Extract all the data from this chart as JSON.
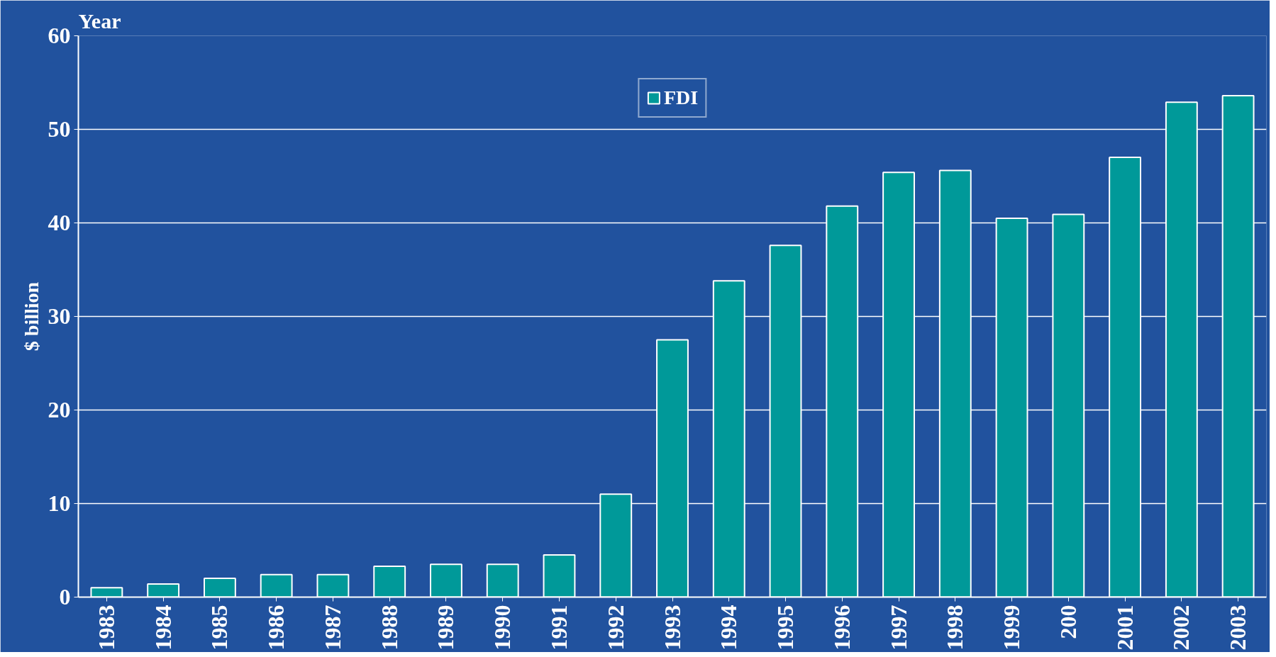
{
  "chart_data": {
    "type": "bar",
    "xlabel": "Year",
    "ylabel": "$ billion",
    "categories": [
      "1983",
      "1984",
      "1985",
      "1986",
      "1987",
      "1988",
      "1989",
      "1990",
      "1991",
      "1992",
      "1993",
      "1994",
      "1995",
      "1996",
      "1997",
      "1998",
      "1999",
      "200",
      "2001",
      "2002",
      "2003"
    ],
    "series": [
      {
        "name": "FDI",
        "color": "#009999",
        "values": [
          1.0,
          1.4,
          2.0,
          2.4,
          2.4,
          3.3,
          3.5,
          3.5,
          4.5,
          11.0,
          27.5,
          33.8,
          37.6,
          41.8,
          45.4,
          45.6,
          40.5,
          40.9,
          47.0,
          52.9,
          53.6
        ]
      }
    ],
    "ylim": [
      0,
      60
    ],
    "yticks": [
      0,
      10,
      20,
      30,
      40,
      50,
      60
    ],
    "grid": "y",
    "legend": "top"
  }
}
